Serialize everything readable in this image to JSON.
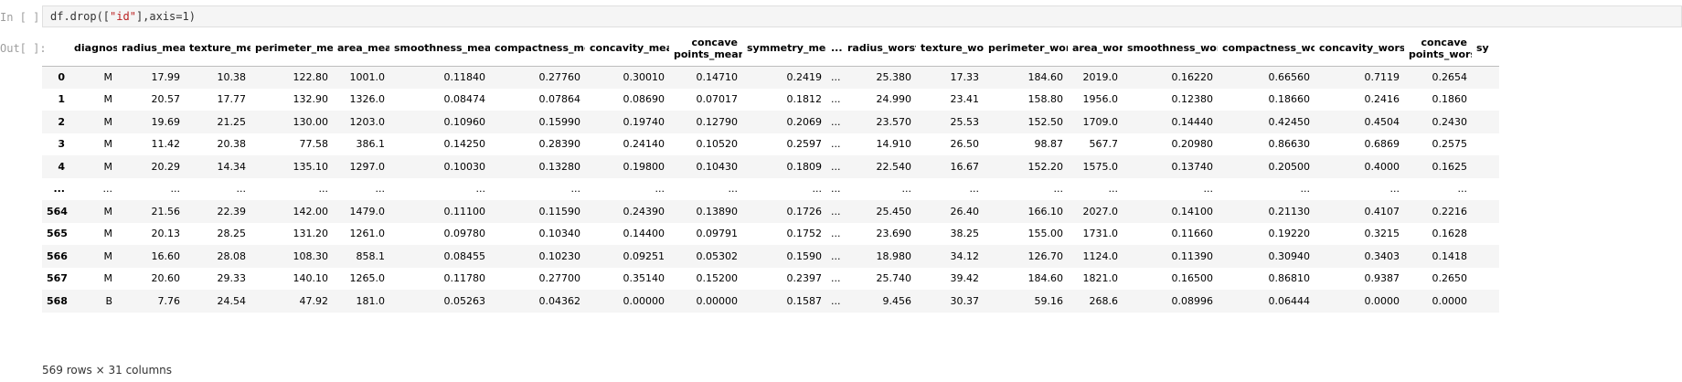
{
  "input_cell": {
    "prompt": "In [ ]:",
    "code_prefix": "df.drop([",
    "code_string": "\"id\"",
    "code_suffix": "],axis=1)"
  },
  "output_cell": {
    "prompt": "Out[ ]:"
  },
  "table": {
    "columns": [
      "",
      "diagnosis",
      "radius_mean",
      "texture_mean",
      "perimeter_mean",
      "area_mean",
      "smoothness_mean",
      "compactness_mean",
      "concavity_mean",
      "concave points_mean",
      "symmetry_mean",
      "...",
      "radius_worst",
      "texture_worst",
      "perimeter_worst",
      "area_worst",
      "smoothness_worst",
      "compactness_worst",
      "concavity_worst",
      "concave points_worst",
      "sy"
    ],
    "rows": [
      [
        "0",
        "M",
        "17.99",
        "10.38",
        "122.80",
        "1001.0",
        "0.11840",
        "0.27760",
        "0.30010",
        "0.14710",
        "0.2419",
        "...",
        "25.380",
        "17.33",
        "184.60",
        "2019.0",
        "0.16220",
        "0.66560",
        "0.7119",
        "0.2654",
        ""
      ],
      [
        "1",
        "M",
        "20.57",
        "17.77",
        "132.90",
        "1326.0",
        "0.08474",
        "0.07864",
        "0.08690",
        "0.07017",
        "0.1812",
        "...",
        "24.990",
        "23.41",
        "158.80",
        "1956.0",
        "0.12380",
        "0.18660",
        "0.2416",
        "0.1860",
        ""
      ],
      [
        "2",
        "M",
        "19.69",
        "21.25",
        "130.00",
        "1203.0",
        "0.10960",
        "0.15990",
        "0.19740",
        "0.12790",
        "0.2069",
        "...",
        "23.570",
        "25.53",
        "152.50",
        "1709.0",
        "0.14440",
        "0.42450",
        "0.4504",
        "0.2430",
        ""
      ],
      [
        "3",
        "M",
        "11.42",
        "20.38",
        "77.58",
        "386.1",
        "0.14250",
        "0.28390",
        "0.24140",
        "0.10520",
        "0.2597",
        "...",
        "14.910",
        "26.50",
        "98.87",
        "567.7",
        "0.20980",
        "0.86630",
        "0.6869",
        "0.2575",
        ""
      ],
      [
        "4",
        "M",
        "20.29",
        "14.34",
        "135.10",
        "1297.0",
        "0.10030",
        "0.13280",
        "0.19800",
        "0.10430",
        "0.1809",
        "...",
        "22.540",
        "16.67",
        "152.20",
        "1575.0",
        "0.13740",
        "0.20500",
        "0.4000",
        "0.1625",
        ""
      ],
      [
        "...",
        "...",
        "...",
        "...",
        "...",
        "...",
        "...",
        "...",
        "...",
        "...",
        "...",
        "...",
        "...",
        "...",
        "...",
        "...",
        "...",
        "...",
        "...",
        "...",
        ""
      ],
      [
        "564",
        "M",
        "21.56",
        "22.39",
        "142.00",
        "1479.0",
        "0.11100",
        "0.11590",
        "0.24390",
        "0.13890",
        "0.1726",
        "...",
        "25.450",
        "26.40",
        "166.10",
        "2027.0",
        "0.14100",
        "0.21130",
        "0.4107",
        "0.2216",
        ""
      ],
      [
        "565",
        "M",
        "20.13",
        "28.25",
        "131.20",
        "1261.0",
        "0.09780",
        "0.10340",
        "0.14400",
        "0.09791",
        "0.1752",
        "...",
        "23.690",
        "38.25",
        "155.00",
        "1731.0",
        "0.11660",
        "0.19220",
        "0.3215",
        "0.1628",
        ""
      ],
      [
        "566",
        "M",
        "16.60",
        "28.08",
        "108.30",
        "858.1",
        "0.08455",
        "0.10230",
        "0.09251",
        "0.05302",
        "0.1590",
        "...",
        "18.980",
        "34.12",
        "126.70",
        "1124.0",
        "0.11390",
        "0.30940",
        "0.3403",
        "0.1418",
        ""
      ],
      [
        "567",
        "M",
        "20.60",
        "29.33",
        "140.10",
        "1265.0",
        "0.11780",
        "0.27700",
        "0.35140",
        "0.15200",
        "0.2397",
        "...",
        "25.740",
        "39.42",
        "184.60",
        "1821.0",
        "0.16500",
        "0.86810",
        "0.9387",
        "0.2650",
        ""
      ],
      [
        "568",
        "B",
        "7.76",
        "24.54",
        "47.92",
        "181.0",
        "0.05263",
        "0.04362",
        "0.00000",
        "0.00000",
        "0.1587",
        "...",
        "9.456",
        "30.37",
        "59.16",
        "268.6",
        "0.08996",
        "0.06444",
        "0.0000",
        "0.0000",
        ""
      ]
    ]
  },
  "footer": {
    "shape_text": "569 rows × 31 columns"
  }
}
